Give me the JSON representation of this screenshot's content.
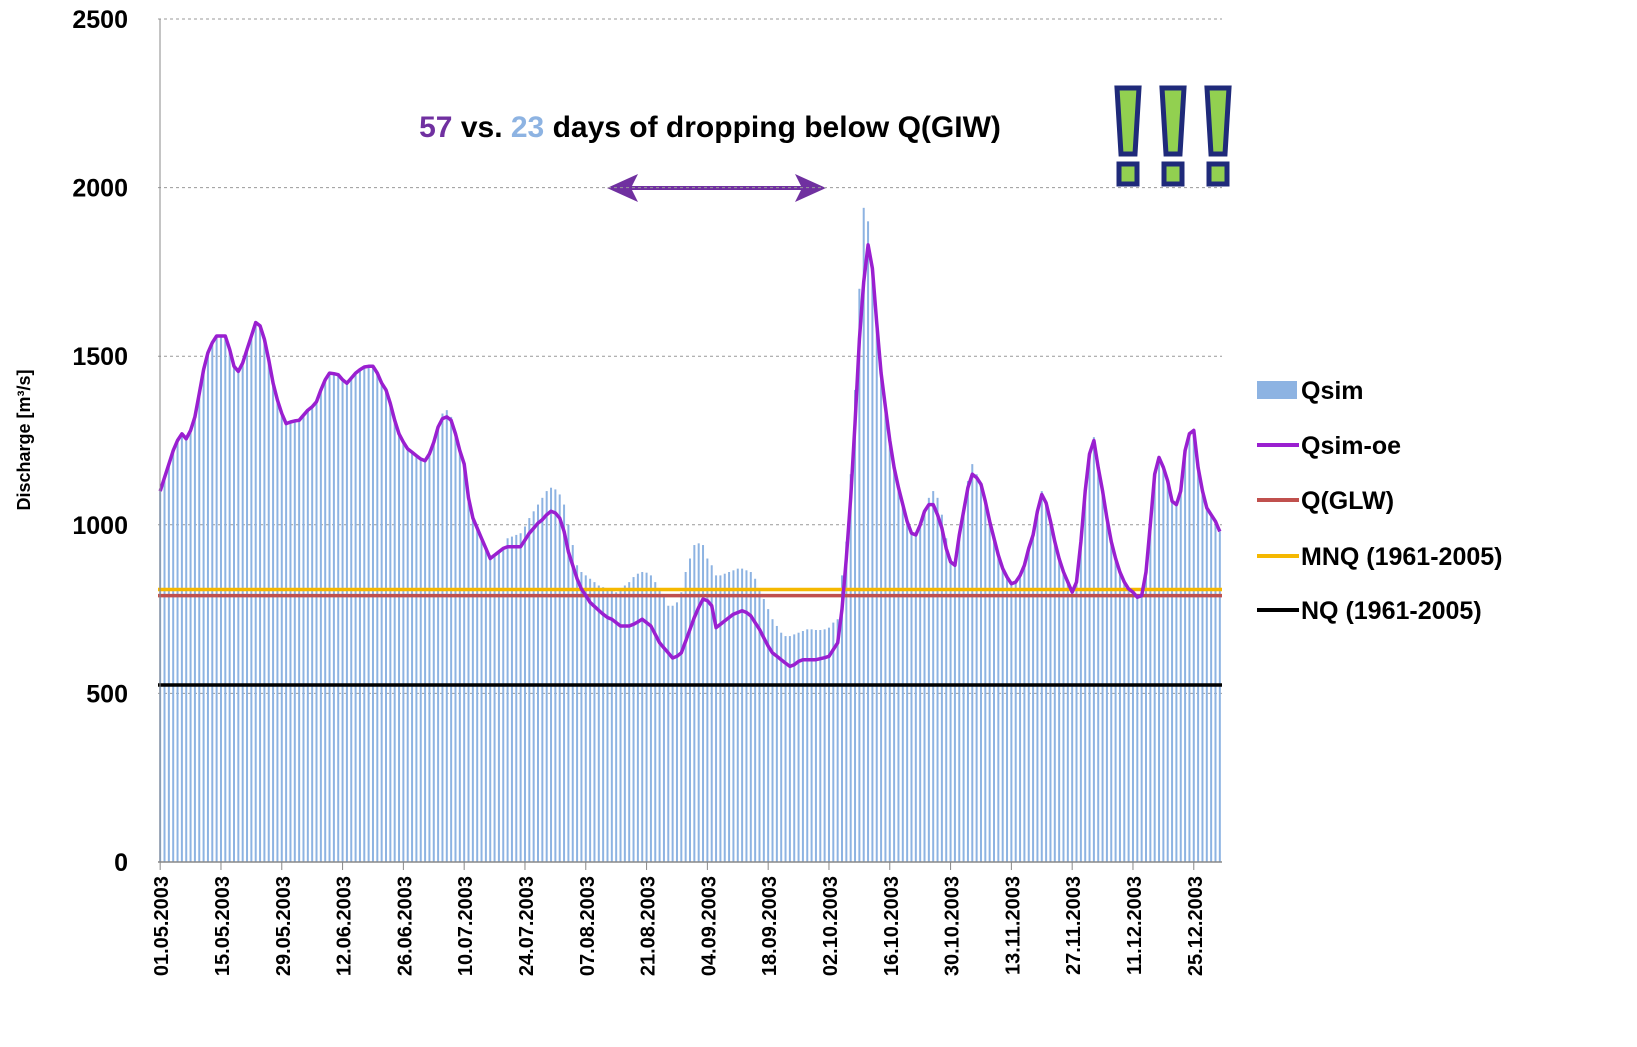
{
  "chart_data": {
    "type": "bar-line",
    "y_label": "Discharge [m³/s]",
    "annotation": {
      "parts": [
        {
          "text": "57",
          "color": "#7030a0"
        },
        {
          "text": " vs. ",
          "color": "#000000"
        },
        {
          "text": "23",
          "color": "#8db3e2"
        },
        {
          "text": " days of dropping below Q(GIW)",
          "color": "#000000"
        }
      ]
    },
    "ylim": [
      0,
      2500
    ],
    "yticks": [
      0,
      500,
      1000,
      1500,
      2000,
      2500
    ],
    "grid": true,
    "legend": "right",
    "categories": [
      "01.05.2003",
      null,
      null,
      null,
      null,
      null,
      null,
      null,
      null,
      null,
      null,
      null,
      null,
      null,
      "15.05.2003",
      null,
      null,
      null,
      null,
      null,
      null,
      null,
      null,
      null,
      null,
      null,
      null,
      null,
      "29.05.2003",
      null,
      null,
      null,
      null,
      null,
      null,
      null,
      null,
      null,
      null,
      null,
      null,
      null,
      "12.06.2003",
      null,
      null,
      null,
      null,
      null,
      null,
      null,
      null,
      null,
      null,
      null,
      null,
      null,
      "26.06.2003",
      null,
      null,
      null,
      null,
      null,
      null,
      null,
      null,
      null,
      null,
      null,
      null,
      null,
      "10.07.2003",
      null,
      null,
      null,
      null,
      null,
      null,
      null,
      null,
      null,
      null,
      null,
      null,
      null,
      "24.07.2003",
      null,
      null,
      null,
      null,
      null,
      null,
      null,
      null,
      null,
      null,
      null,
      null,
      null,
      "07.08.2003",
      null,
      null,
      null,
      null,
      null,
      null,
      null,
      null,
      null,
      null,
      null,
      null,
      null,
      "21.08.2003",
      null,
      null,
      null,
      null,
      null,
      null,
      null,
      null,
      null,
      null,
      null,
      null,
      null,
      "04.09.2003",
      null,
      null,
      null,
      null,
      null,
      null,
      null,
      null,
      null,
      null,
      null,
      null,
      null,
      "18.09.2003",
      null,
      null,
      null,
      null,
      null,
      null,
      null,
      null,
      null,
      null,
      null,
      null,
      null,
      "02.10.2003",
      null,
      null,
      null,
      null,
      null,
      null,
      null,
      null,
      null,
      null,
      null,
      null,
      null,
      "16.10.2003",
      null,
      null,
      null,
      null,
      null,
      null,
      null,
      null,
      null,
      null,
      null,
      null,
      null,
      "30.10.2003",
      null,
      null,
      null,
      null,
      null,
      null,
      null,
      null,
      null,
      null,
      null,
      null,
      null,
      "13.11.2003",
      null,
      null,
      null,
      null,
      null,
      null,
      null,
      null,
      null,
      null,
      null,
      null,
      null,
      "27.11.2003",
      null,
      null,
      null,
      null,
      null,
      null,
      null,
      null,
      null,
      null,
      null,
      null,
      null,
      "11.12.2003",
      null,
      null,
      null,
      null,
      null,
      null,
      null,
      null,
      null,
      null,
      null,
      null,
      null,
      "25.12.2003",
      null,
      null,
      null,
      null,
      null,
      null
    ],
    "series": [
      {
        "name": "Qsim",
        "kind": "bar",
        "color": "#8db3e2",
        "values": [
          1100,
          1140,
          1180,
          1220,
          1250,
          1270,
          1255,
          1280,
          1320,
          1390,
          1460,
          1510,
          1540,
          1560,
          1560,
          1560,
          1520,
          1470,
          1455,
          1480,
          1520,
          1560,
          1600,
          1590,
          1550,
          1490,
          1420,
          1370,
          1330,
          1300,
          1305,
          1308,
          1310,
          1325,
          1340,
          1350,
          1365,
          1400,
          1430,
          1450,
          1448,
          1445,
          1430,
          1420,
          1435,
          1450,
          1460,
          1468,
          1470,
          1470,
          1450,
          1420,
          1400,
          1360,
          1310,
          1270,
          1245,
          1225,
          1215,
          1205,
          1195,
          1190,
          1210,
          1245,
          1290,
          1330,
          1340,
          1320,
          1270,
          1220,
          1180,
          1080,
          1020,
          990,
          960,
          930,
          900,
          910,
          920,
          930,
          960,
          965,
          970,
          975,
          995,
          1020,
          1040,
          1060,
          1080,
          1100,
          1110,
          1105,
          1090,
          1060,
          1000,
          940,
          880,
          860,
          850,
          840,
          830,
          820,
          815,
          810,
          805,
          800,
          810,
          820,
          830,
          845,
          855,
          860,
          858,
          850,
          830,
          810,
          790,
          760,
          760,
          770,
          800,
          860,
          900,
          940,
          945,
          940,
          900,
          880,
          850,
          850,
          855,
          860,
          865,
          870,
          870,
          865,
          860,
          840,
          810,
          780,
          750,
          720,
          700,
          680,
          670,
          670,
          675,
          680,
          685,
          690,
          690,
          688,
          688,
          690,
          695,
          710,
          720,
          850,
          950,
          1150,
          1400,
          1700,
          1940,
          1900,
          1750,
          1600,
          1450,
          1350,
          1250,
          1170,
          1110,
          1060,
          1010,
          975,
          970,
          1000,
          1040,
          1080,
          1100,
          1080,
          1030,
          960,
          900,
          880,
          970,
          1050,
          1130,
          1180,
          1150,
          1120,
          1070,
          1010,
          960,
          910,
          870,
          845,
          825,
          830,
          850,
          880,
          930,
          970,
          1040,
          1100,
          1070,
          1010,
          950,
          900,
          860,
          830,
          800,
          830,
          950,
          1100,
          1210,
          1260,
          1180,
          1100,
          1020,
          950,
          900,
          860,
          830,
          810,
          800,
          785,
          790,
          860,
          1000,
          1150,
          1200,
          1170,
          1130,
          1070,
          1060,
          1100,
          1220,
          1270,
          1280,
          1170,
          1100,
          1050,
          1030,
          1010,
          980
        ]
      },
      {
        "name": "Qsim-oe",
        "kind": "line",
        "color": "#9a1fd0",
        "values": [
          1100,
          1140,
          1180,
          1220,
          1250,
          1270,
          1255,
          1280,
          1320,
          1390,
          1460,
          1510,
          1540,
          1560,
          1560,
          1560,
          1520,
          1470,
          1455,
          1480,
          1520,
          1560,
          1600,
          1590,
          1550,
          1490,
          1420,
          1370,
          1330,
          1300,
          1305,
          1308,
          1310,
          1325,
          1340,
          1350,
          1365,
          1400,
          1430,
          1450,
          1448,
          1445,
          1430,
          1420,
          1435,
          1450,
          1460,
          1468,
          1470,
          1470,
          1450,
          1420,
          1400,
          1360,
          1310,
          1270,
          1245,
          1225,
          1215,
          1205,
          1195,
          1190,
          1210,
          1245,
          1290,
          1315,
          1320,
          1310,
          1270,
          1220,
          1180,
          1080,
          1020,
          990,
          960,
          930,
          900,
          910,
          920,
          930,
          935,
          935,
          935,
          935,
          955,
          975,
          990,
          1005,
          1015,
          1030,
          1040,
          1035,
          1020,
          980,
          920,
          880,
          840,
          810,
          790,
          770,
          758,
          746,
          735,
          725,
          720,
          710,
          700,
          700,
          700,
          705,
          712,
          720,
          710,
          700,
          675,
          650,
          635,
          620,
          605,
          610,
          620,
          655,
          690,
          725,
          755,
          780,
          775,
          760,
          695,
          705,
          715,
          725,
          735,
          740,
          745,
          740,
          730,
          710,
          690,
          665,
          640,
          620,
          610,
          600,
          590,
          580,
          585,
          595,
          600,
          600,
          600,
          600,
          603,
          606,
          610,
          630,
          650,
          750,
          900,
          1080,
          1300,
          1550,
          1720,
          1830,
          1760,
          1600,
          1450,
          1350,
          1250,
          1170,
          1110,
          1060,
          1010,
          975,
          970,
          1000,
          1040,
          1060,
          1060,
          1030,
          990,
          930,
          890,
          880,
          970,
          1040,
          1110,
          1150,
          1140,
          1120,
          1070,
          1010,
          960,
          910,
          870,
          845,
          825,
          830,
          850,
          880,
          930,
          970,
          1040,
          1090,
          1065,
          1010,
          950,
          900,
          860,
          830,
          800,
          830,
          950,
          1100,
          1210,
          1250,
          1170,
          1100,
          1020,
          950,
          900,
          860,
          830,
          810,
          800,
          785,
          790,
          860,
          1000,
          1150,
          1200,
          1170,
          1130,
          1070,
          1060,
          1100,
          1220,
          1270,
          1280,
          1170,
          1100,
          1050,
          1030,
          1010,
          980
        ]
      },
      {
        "name": "Q(GLW)",
        "kind": "hline",
        "color": "#c0504d",
        "value": 790
      },
      {
        "name": "MNQ (1961-2005)",
        "kind": "hline",
        "color": "#f5b800",
        "value": 808
      },
      {
        "name": "NQ (1961-2005)",
        "kind": "hline",
        "color": "#000000",
        "value": 525
      }
    ]
  }
}
